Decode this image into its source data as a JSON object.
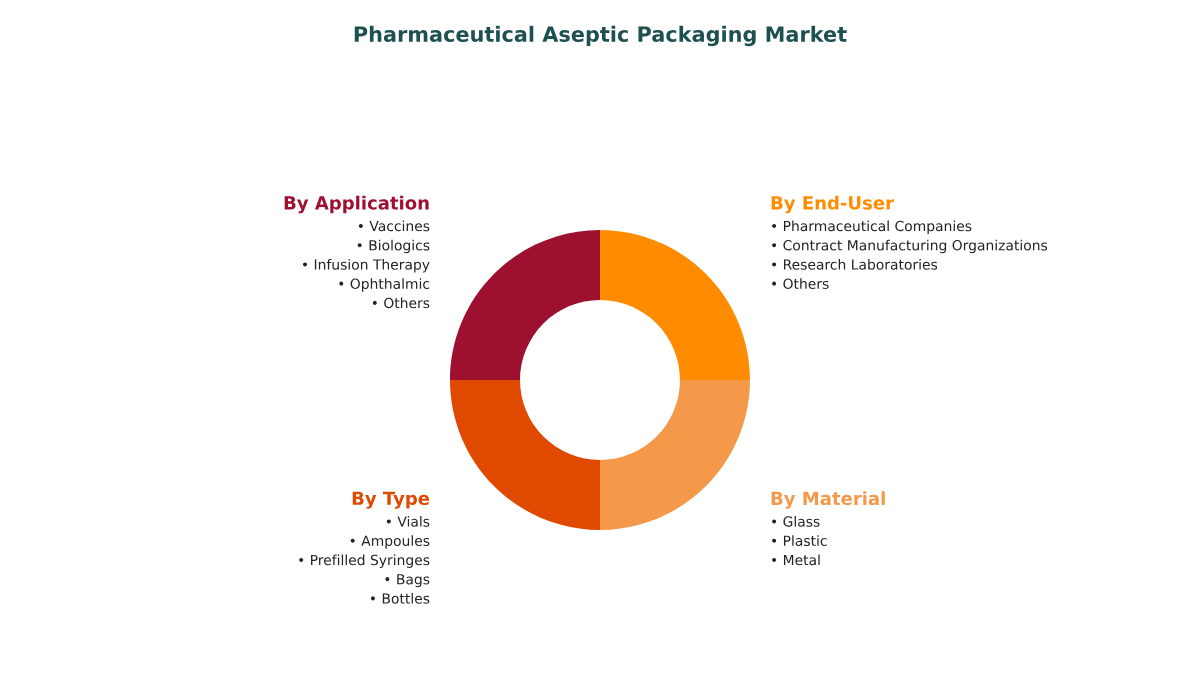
{
  "chart_data": {
    "type": "donut",
    "title": "Pharmaceutical Aseptic Packaging Market",
    "categories": [
      "By End-User",
      "By Material",
      "By Type",
      "By Application"
    ],
    "values": [
      25,
      25,
      25,
      25
    ],
    "colors": [
      "#ff8c00",
      "#f4994a",
      "#e04a00",
      "#9e1030"
    ],
    "annotations": [
      "• Pharmaceutical Companies\n• Contract Manufacturing Organizations\n• Research Laboratories\n• Others",
      "• Glass\n• Plastic\n• Metal",
      "• Vials\n• Ampoules\n• Prefilled Syringes\n• Bags\n• Bottles",
      "• Vaccines\n• Biologics\n• Infusion Therapy\n• Ophthalmic\n• Others"
    ],
    "legend": false
  }
}
